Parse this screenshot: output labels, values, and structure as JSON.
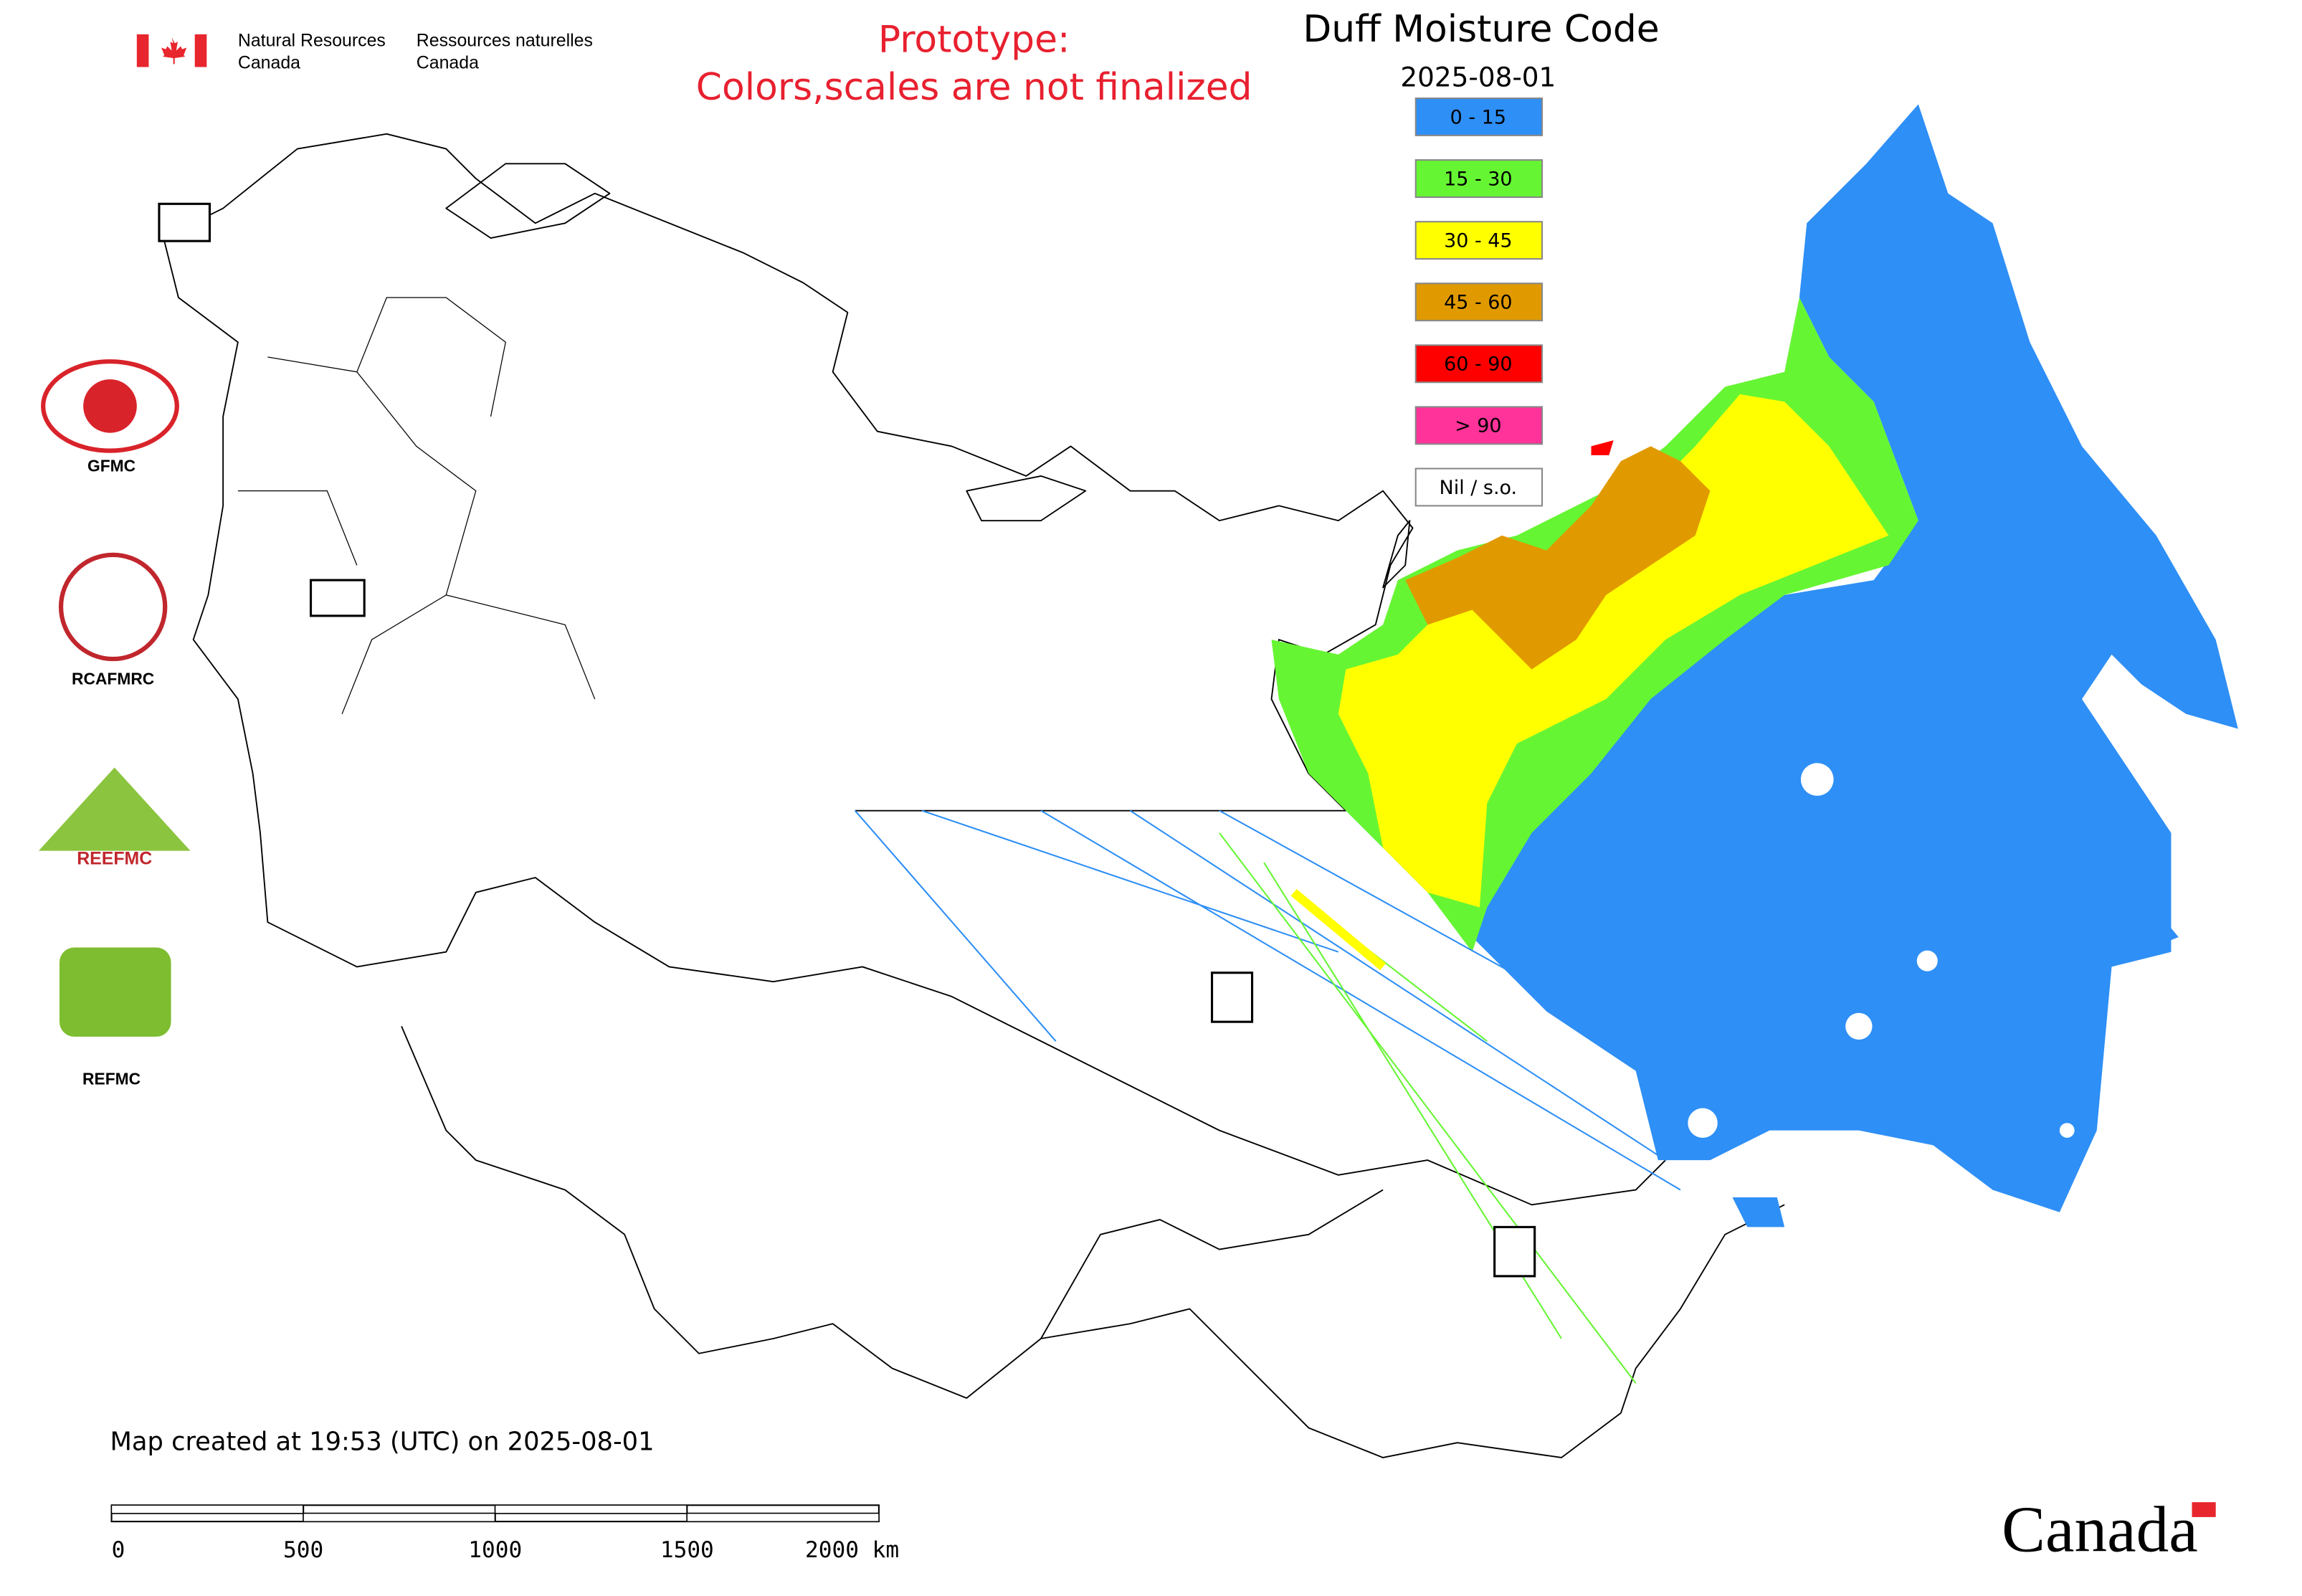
{
  "header": {
    "agency_en": [
      "Natural Resources",
      "Canada"
    ],
    "agency_fr": [
      "Ressources naturelles",
      "Canada"
    ],
    "notice": [
      "Prototype:",
      "Colors,scales are not finalized"
    ]
  },
  "map": {
    "title": "Duff Moisture Code",
    "date": "2025-08-01",
    "legend": [
      {
        "label": "0 - 15",
        "color": "#2e8ff6"
      },
      {
        "label": "15 - 30",
        "color": "#66f533"
      },
      {
        "label": "30 - 45",
        "color": "#ffff00"
      },
      {
        "label": "45 - 60",
        "color": "#e09a00"
      },
      {
        "label": "60 - 90",
        "color": "#ff0000"
      },
      {
        "label": "> 90",
        "color": "#ff3399"
      },
      {
        "label": "Nil / s.o.",
        "color": "#ffffff"
      }
    ],
    "created": "Map created at 19:53 (UTC) on 2025-08-01",
    "scale_bar": {
      "ticks": [
        "0",
        "500",
        "1000",
        "1500",
        "2000 km"
      ]
    }
  },
  "logos": [
    {
      "label": "GFMC"
    },
    {
      "label": "RCAFMRC"
    },
    {
      "wordmark": "REEFMC"
    },
    {
      "label": "REFMC"
    }
  ],
  "footer": {
    "wordmark": "Canada"
  }
}
